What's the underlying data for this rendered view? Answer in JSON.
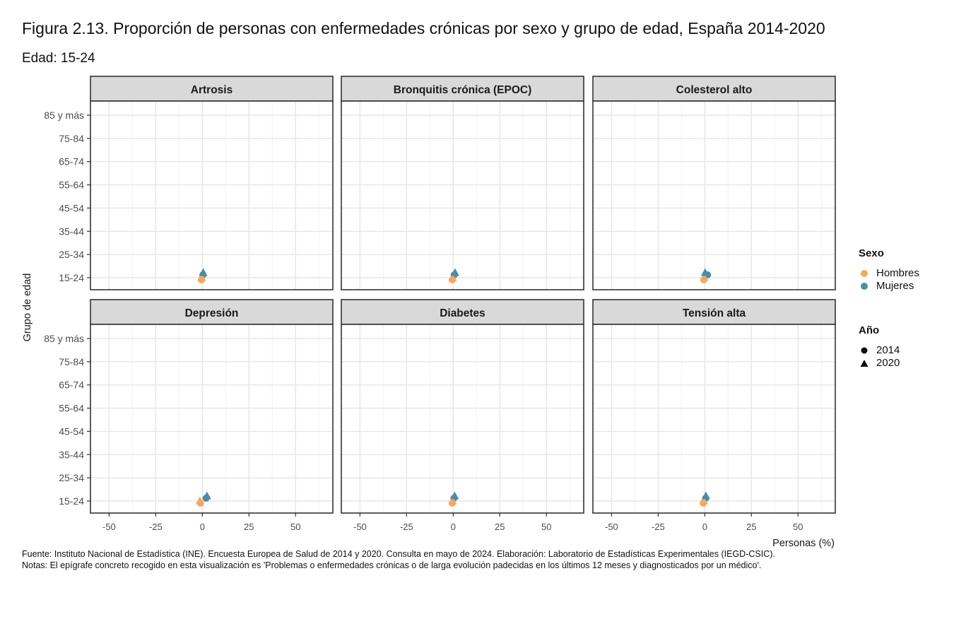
{
  "title": "Figura 2.13. Proporción de personas con enfermedades crónicas por sexo y grupo de edad, España 2014-2020",
  "subtitle": "Edad: 15-24",
  "caption": {
    "source": "Fuente: Instituto Nacional de Estadística (INE). Encuesta Europea de Salud de 2014 y 2020. Consulta en mayo de 2024. Elaboración: Laboratorio de Estadísticas Experimentales (IEGD-CSIC).",
    "notes": "Notas: El epígrafe concreto recogido en esta visualización es 'Problemas o enfermedades crónicas o de larga evolución padecidas en los últimos 12 meses y diagnosticados por un médico'."
  },
  "legend": {
    "sexo_title": "Sexo",
    "sexo_items": [
      {
        "label": "Hombres",
        "color": "#F4A95C"
      },
      {
        "label": "Mujeres",
        "color": "#4E8BA6"
      }
    ],
    "anio_title": "Año",
    "anio_items": [
      {
        "label": "2014",
        "shape": "circle"
      },
      {
        "label": "2020",
        "shape": "triangle"
      }
    ]
  },
  "chart_data": {
    "type": "scatter",
    "xlabel": "Personas (%)",
    "ylabel": "Grupo de edad",
    "xlim": [
      -60,
      70
    ],
    "x_ticks": [
      -50,
      -25,
      0,
      25,
      50
    ],
    "y_categories": [
      "15-24",
      "25-34",
      "35-44",
      "45-54",
      "55-64",
      "65-74",
      "75-84",
      "85 y más"
    ],
    "grid": true,
    "legend_position": "right",
    "series_colors": {
      "Hombres": "#F4A95C",
      "Mujeres": "#4E8BA6"
    },
    "panels": [
      {
        "title": "Artrosis",
        "points": [
          {
            "sexo": "Hombres",
            "anio": "2014",
            "x": -0.5,
            "y": "15-24"
          },
          {
            "sexo": "Hombres",
            "anio": "2020",
            "x": -0.3,
            "y": "15-24"
          },
          {
            "sexo": "Mujeres",
            "anio": "2014",
            "x": 0.3,
            "y": "15-24"
          },
          {
            "sexo": "Mujeres",
            "anio": "2020",
            "x": 0.5,
            "y": "15-24"
          }
        ]
      },
      {
        "title": "Bronquitis crónica (EPOC)",
        "points": [
          {
            "sexo": "Hombres",
            "anio": "2014",
            "x": -0.5,
            "y": "15-24"
          },
          {
            "sexo": "Hombres",
            "anio": "2020",
            "x": -0.3,
            "y": "15-24"
          },
          {
            "sexo": "Mujeres",
            "anio": "2014",
            "x": 0.5,
            "y": "15-24"
          },
          {
            "sexo": "Mujeres",
            "anio": "2020",
            "x": 1.0,
            "y": "15-24"
          }
        ]
      },
      {
        "title": "Colesterol alto",
        "points": [
          {
            "sexo": "Hombres",
            "anio": "2014",
            "x": -0.5,
            "y": "15-24"
          },
          {
            "sexo": "Hombres",
            "anio": "2020",
            "x": -0.3,
            "y": "15-24"
          },
          {
            "sexo": "Mujeres",
            "anio": "2014",
            "x": 1.5,
            "y": "15-24"
          },
          {
            "sexo": "Mujeres",
            "anio": "2020",
            "x": 0.2,
            "y": "15-24"
          }
        ]
      },
      {
        "title": "Depresión",
        "points": [
          {
            "sexo": "Hombres",
            "anio": "2014",
            "x": -1.0,
            "y": "15-24"
          },
          {
            "sexo": "Hombres",
            "anio": "2020",
            "x": -1.3,
            "y": "15-24"
          },
          {
            "sexo": "Mujeres",
            "anio": "2014",
            "x": 2.0,
            "y": "15-24"
          },
          {
            "sexo": "Mujeres",
            "anio": "2020",
            "x": 2.5,
            "y": "15-24"
          }
        ]
      },
      {
        "title": "Diabetes",
        "points": [
          {
            "sexo": "Hombres",
            "anio": "2014",
            "x": -0.5,
            "y": "15-24"
          },
          {
            "sexo": "Hombres",
            "anio": "2020",
            "x": -0.3,
            "y": "15-24"
          },
          {
            "sexo": "Mujeres",
            "anio": "2014",
            "x": 0.4,
            "y": "15-24"
          },
          {
            "sexo": "Mujeres",
            "anio": "2020",
            "x": 0.8,
            "y": "15-24"
          }
        ]
      },
      {
        "title": "Tensión alta",
        "points": [
          {
            "sexo": "Hombres",
            "anio": "2014",
            "x": -0.8,
            "y": "15-24"
          },
          {
            "sexo": "Hombres",
            "anio": "2020",
            "x": -0.5,
            "y": "15-24"
          },
          {
            "sexo": "Mujeres",
            "anio": "2014",
            "x": 0.5,
            "y": "15-24"
          },
          {
            "sexo": "Mujeres",
            "anio": "2020",
            "x": 0.6,
            "y": "15-24"
          }
        ]
      }
    ]
  }
}
